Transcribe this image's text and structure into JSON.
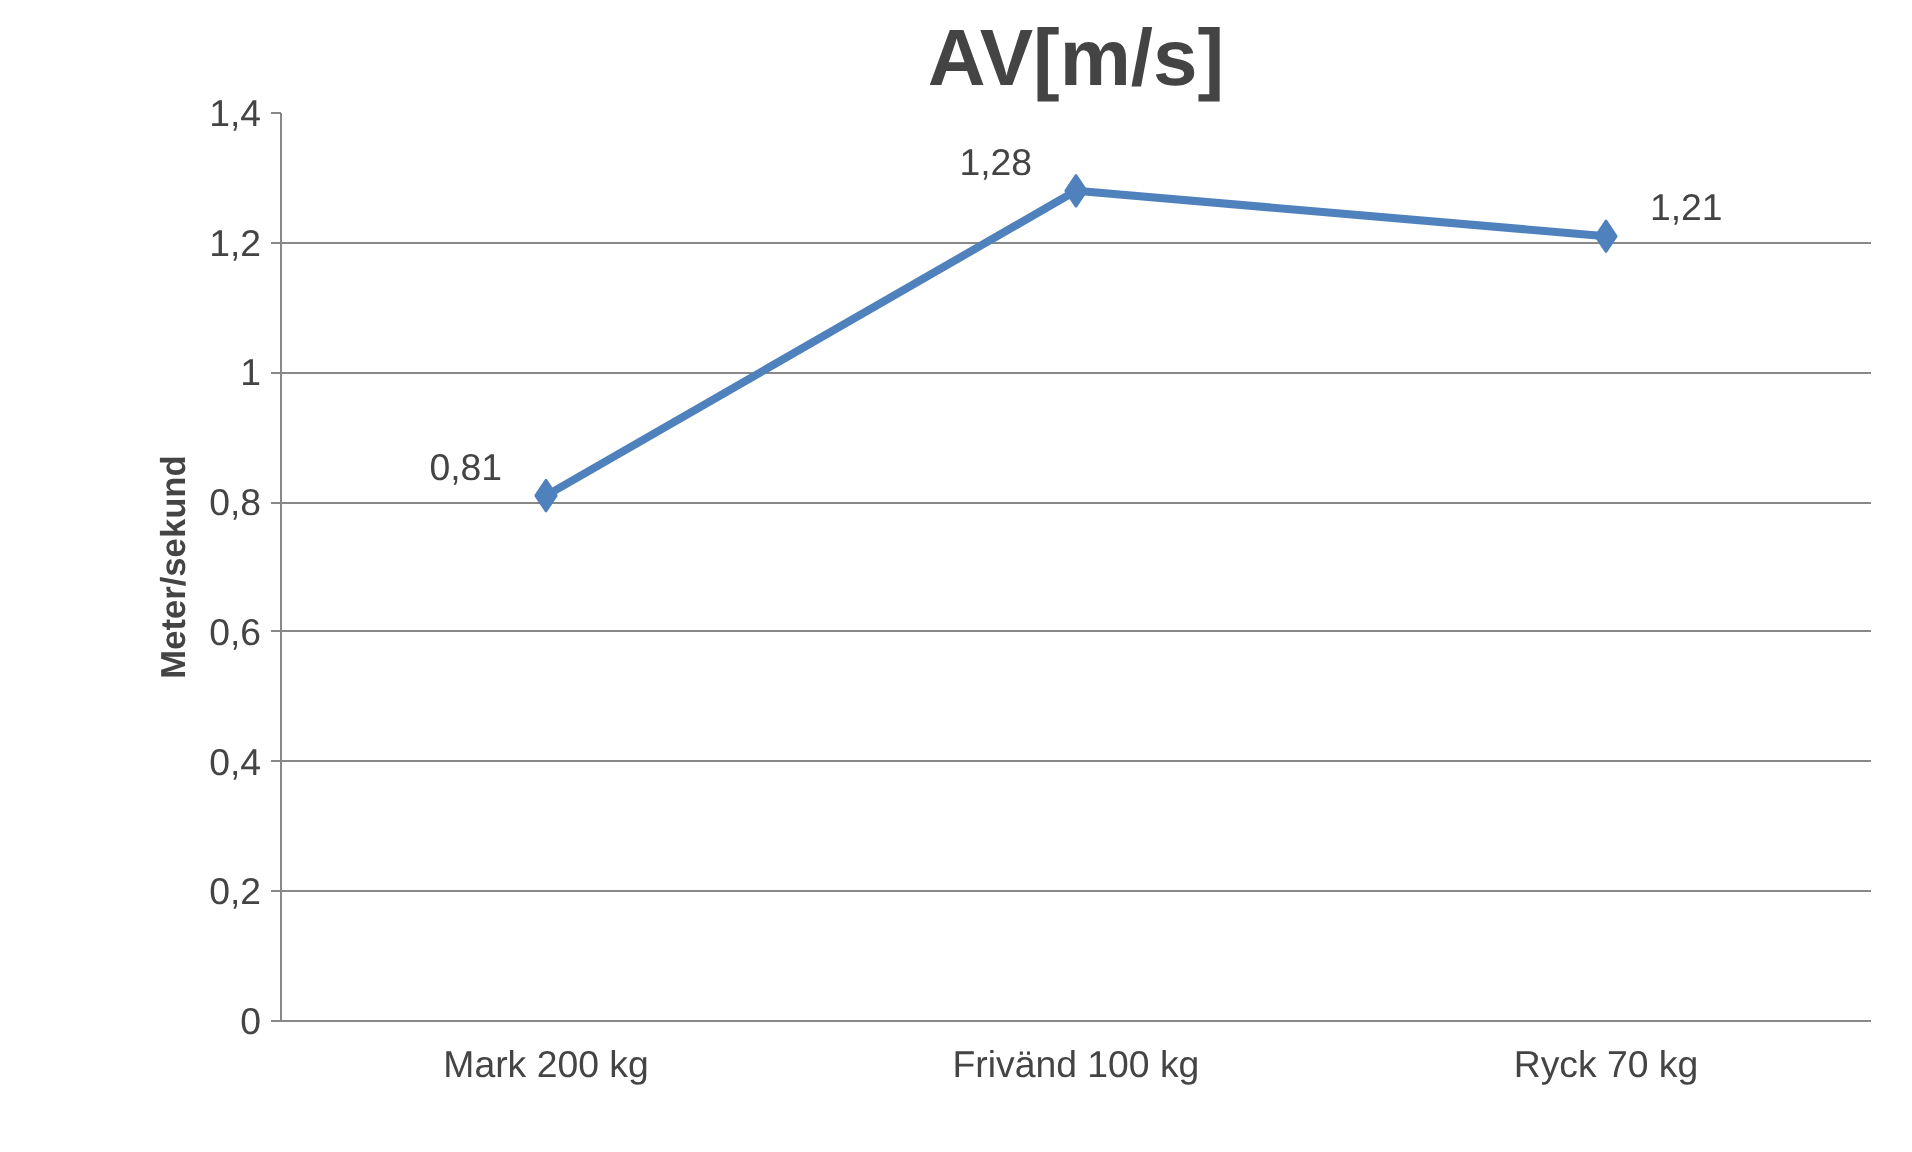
{
  "chart_data": {
    "type": "line",
    "title": "AV[m/s]",
    "ylabel": "Meter/sekund",
    "categories": [
      "Mark 200 kg",
      "Frivänd 100 kg",
      "Ryck 70 kg"
    ],
    "series": [
      {
        "color": "#4f81bd",
        "values": [
          0.81,
          1.28,
          1.21
        ],
        "value_labels": [
          "0,81",
          "1,28",
          "1,21"
        ]
      }
    ],
    "ylim": [
      0,
      1.4
    ],
    "yticks": [
      {
        "value": 0,
        "label": "0"
      },
      {
        "value": 0.2,
        "label": "0,2"
      },
      {
        "value": 0.4,
        "label": "0,4"
      },
      {
        "value": 0.6,
        "label": "0,6"
      },
      {
        "value": 0.8,
        "label": "0,8"
      },
      {
        "value": 1,
        "label": "1"
      },
      {
        "value": 1.2,
        "label": "1,2"
      },
      {
        "value": 1.4,
        "label": "1,4"
      }
    ],
    "grid": "y",
    "marker": "diamond",
    "line_style": "solid"
  }
}
